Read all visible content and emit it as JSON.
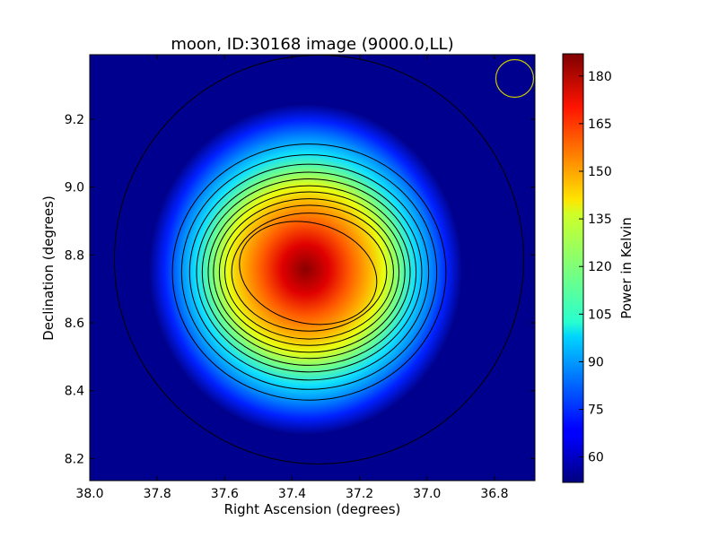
{
  "chart_data": {
    "type": "heatmap",
    "title": "moon, ID:30168 image (9000.0,LL)",
    "xlabel": "Right Ascension (degrees)",
    "ylabel": "Declination (degrees)",
    "colorbar_label": "Power in Kelvin",
    "colormap": "jet",
    "x_inverted": true,
    "xlim": [
      38.0,
      36.68
    ],
    "ylim": [
      8.135,
      9.39
    ],
    "x_ticks": [
      38.0,
      37.8,
      37.6,
      37.4,
      37.2,
      37.0,
      36.8
    ],
    "x_tick_labels": [
      "38.0",
      "37.8",
      "37.6",
      "37.4",
      "37.2",
      "37.0",
      "36.8"
    ],
    "y_ticks": [
      8.2,
      8.4,
      8.6,
      8.8,
      9.0,
      9.2
    ],
    "y_tick_labels": [
      "8.2",
      "8.4",
      "8.6",
      "8.8",
      "9.0",
      "9.2"
    ],
    "colorbar_range": [
      52,
      187
    ],
    "colorbar_ticks": [
      60,
      75,
      90,
      105,
      120,
      135,
      150,
      165,
      180
    ],
    "colorbar_tick_labels": [
      "60",
      "75",
      "90",
      "105",
      "120",
      "135",
      "150",
      "165",
      "180"
    ],
    "peak": {
      "ra": 37.36,
      "dec": 8.76,
      "value": 187
    },
    "background_value": 52,
    "contour_levels": [
      62,
      73,
      83,
      94,
      105,
      115,
      126,
      136,
      147,
      157,
      168,
      178
    ],
    "beam_marker": {
      "ra": 36.74,
      "dec": 9.32,
      "color": "#c8c800"
    },
    "grid": false
  }
}
